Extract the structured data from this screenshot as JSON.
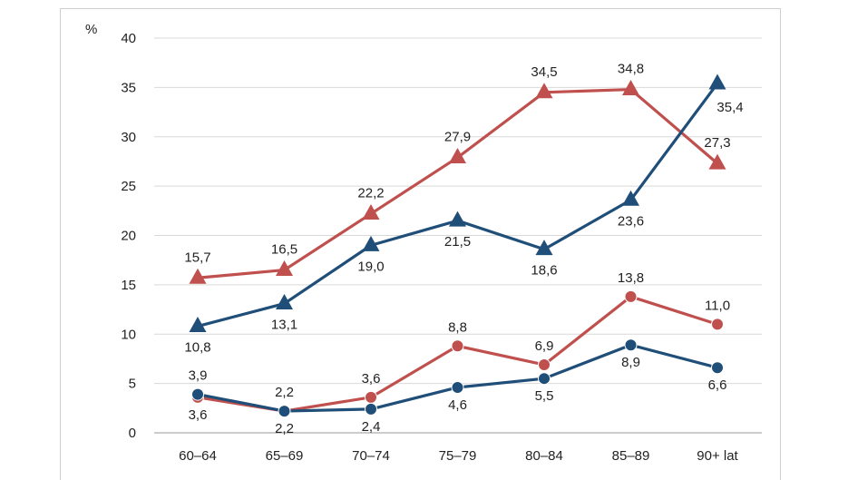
{
  "chart_data": {
    "type": "line",
    "title": "",
    "xlabel": "",
    "ylabel": "%",
    "ylim": [
      0,
      40
    ],
    "yticks": [
      0,
      5,
      10,
      15,
      20,
      25,
      30,
      35,
      40
    ],
    "grid": "horizontal",
    "categories": [
      "60–64",
      "65–69",
      "70–74",
      "75–79",
      "80–84",
      "85–89",
      "90+ lat"
    ],
    "series": [
      {
        "marker": "triangle",
        "color": "#c0504d",
        "values": [
          15.7,
          16.5,
          22.2,
          27.9,
          34.5,
          34.8,
          27.3
        ],
        "labels": [
          "15,7",
          "16,5",
          "22,2",
          "27,9",
          "34,5",
          "34,8",
          "27,3"
        ],
        "label_side": [
          "above",
          "above",
          "above",
          "above",
          "above",
          "above",
          "above"
        ]
      },
      {
        "marker": "triangle",
        "color": "#1f4e79",
        "values": [
          10.8,
          13.1,
          19.0,
          21.5,
          18.6,
          23.6,
          35.4
        ],
        "labels": [
          "10,8",
          "13,1",
          "19,0",
          "21,5",
          "18,6",
          "23,6",
          "35,4"
        ],
        "label_side": [
          "below",
          "below",
          "below",
          "below",
          "below",
          "below",
          "below"
        ]
      },
      {
        "marker": "circle",
        "color": "#c0504d",
        "values": [
          3.6,
          2.2,
          3.6,
          8.8,
          6.9,
          13.8,
          11.0
        ],
        "labels": [
          "3,6",
          "2,2",
          "3,6",
          "8,8",
          "6,9",
          "13,8",
          "11,0"
        ],
        "label_side": [
          "below",
          "above",
          "above",
          "above",
          "above",
          "above",
          "above"
        ]
      },
      {
        "marker": "circle",
        "color": "#1f4e79",
        "values": [
          3.9,
          2.2,
          2.4,
          4.6,
          5.5,
          8.9,
          6.6
        ],
        "labels": [
          "3,9",
          "2,2",
          "2,4",
          "4,6",
          "5,5",
          "8,9",
          "6,6"
        ],
        "label_side": [
          "above",
          "below",
          "below",
          "below",
          "below",
          "below",
          "below"
        ]
      }
    ]
  }
}
